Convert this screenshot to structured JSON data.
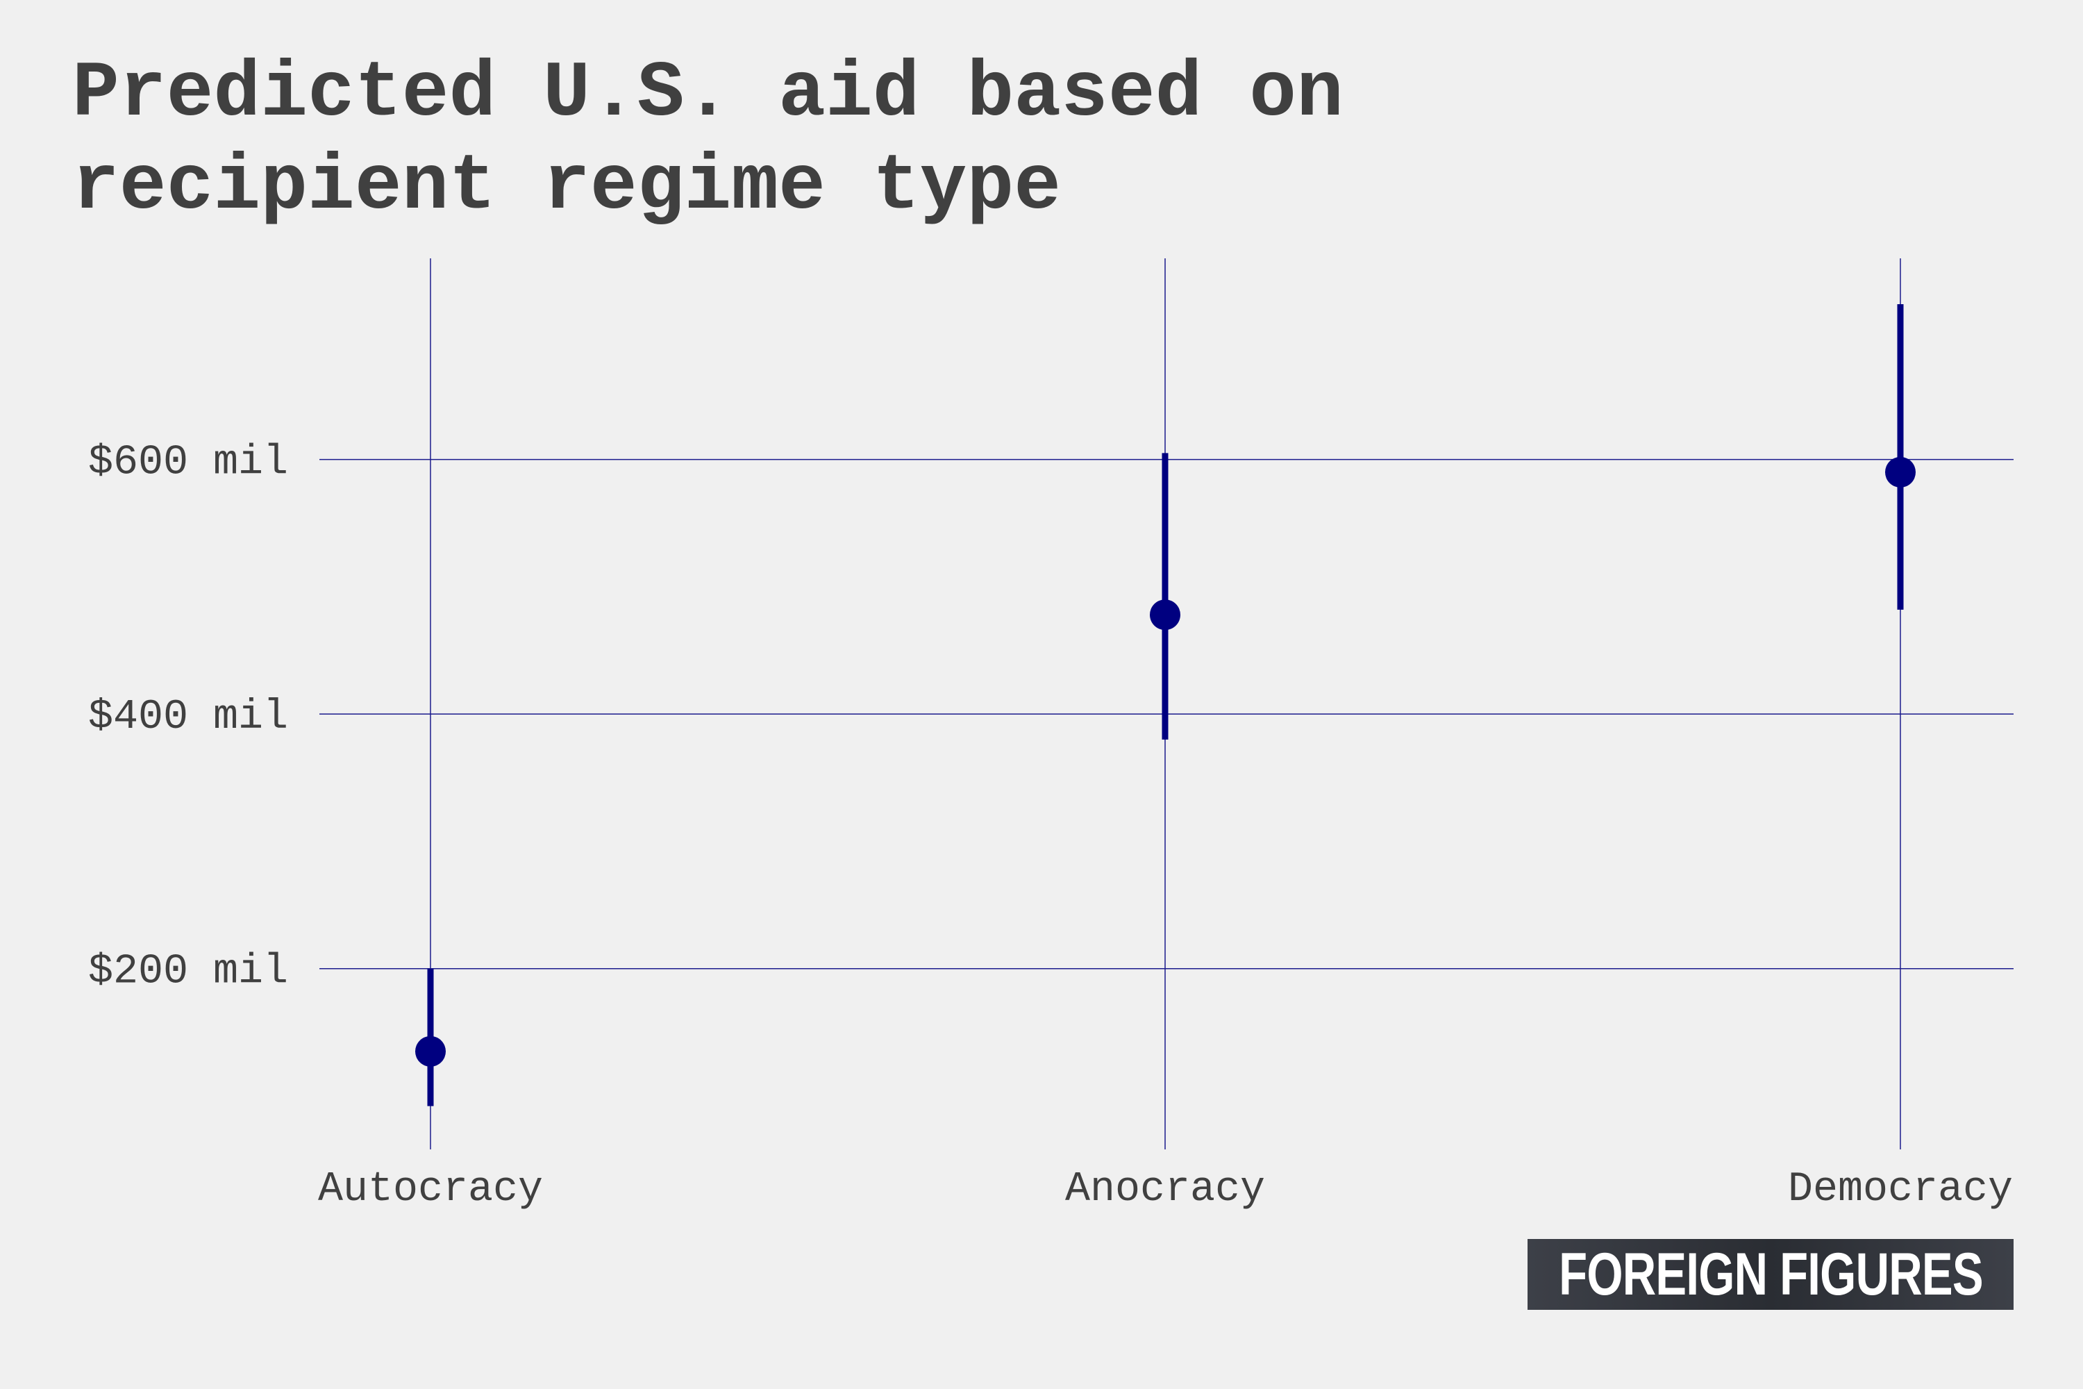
{
  "title": "Predicted U.S. aid based on recipient regime type",
  "brand": {
    "logo_text": "FOREIGN FIGURES",
    "logo_bg": "#33363d",
    "logo_fg": "#ffffff"
  },
  "colors": {
    "background": "#f0f0f0",
    "title": "#404040",
    "axis_text": "#404040",
    "grid": "#1a1a8c",
    "series": "#000080"
  },
  "chart_data": {
    "type": "scatter",
    "subtype": "point estimate with error bars",
    "title": "Predicted U.S. aid based on recipient regime type",
    "xlabel": "",
    "ylabel": "",
    "categories": [
      "Autocracy",
      "Anocracy",
      "Democracy"
    ],
    "estimates": [
      135,
      478,
      590
    ],
    "lower": [
      92,
      380,
      482
    ],
    "upper": [
      200,
      605,
      722
    ],
    "ylim": [
      58,
      758
    ],
    "yticks": [
      200,
      400,
      600
    ],
    "ytick_labels": [
      "$200 mil",
      "$400 mil",
      "$600 mil"
    ],
    "grid": true,
    "legend": false
  }
}
